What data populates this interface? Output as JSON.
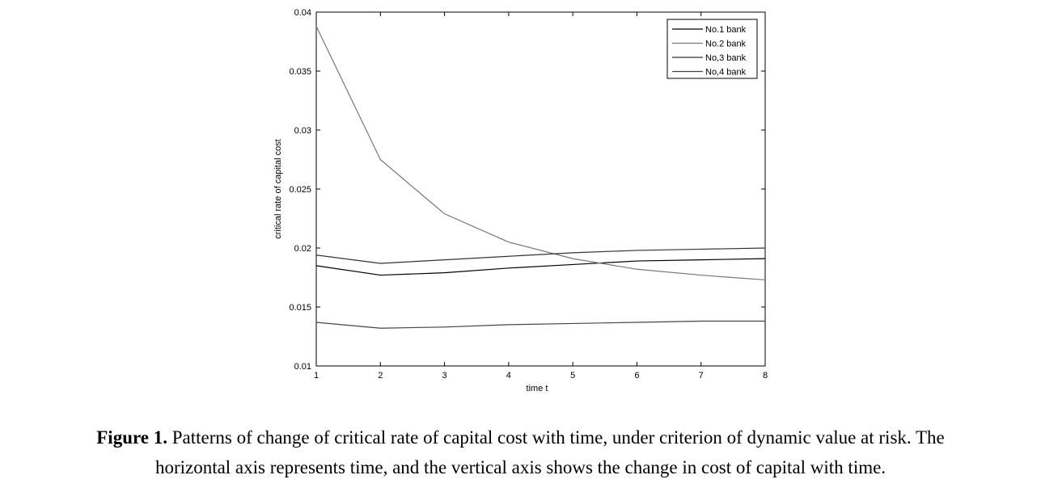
{
  "chart_data": {
    "type": "line",
    "xlabel": "time t",
    "ylabel": "critical rate of capital cost",
    "xlim": [
      1,
      8
    ],
    "ylim": [
      0.01,
      0.04
    ],
    "x_ticks": [
      1,
      2,
      3,
      4,
      5,
      6,
      7,
      8
    ],
    "y_ticks": [
      0.01,
      0.015,
      0.02,
      0.025,
      0.03,
      0.035,
      0.04
    ],
    "y_tick_labels": [
      "0.01",
      "0.015",
      "0.02",
      "0.025",
      "0.03",
      "0.035",
      "0.04"
    ],
    "x": [
      1,
      2,
      3,
      4,
      5,
      6,
      7,
      8
    ],
    "legend_position": "top-right",
    "grid": false,
    "series": [
      {
        "name": "No.1 bank",
        "color": "#000000",
        "values": [
          0.0185,
          0.0177,
          0.0179,
          0.0183,
          0.0186,
          0.0189,
          0.019,
          0.0191
        ]
      },
      {
        "name": "No.2 bank",
        "color": "#777777",
        "values": [
          0.0388,
          0.0275,
          0.0229,
          0.0205,
          0.0191,
          0.0182,
          0.0177,
          0.0173
        ]
      },
      {
        "name": "No,3 bank",
        "color": "#333333",
        "values": [
          0.0194,
          0.0187,
          0.019,
          0.0193,
          0.0196,
          0.0198,
          0.0199,
          0.02
        ]
      },
      {
        "name": "No,4 bank",
        "color": "#444444",
        "values": [
          0.0137,
          0.0132,
          0.0133,
          0.0135,
          0.0136,
          0.0137,
          0.0138,
          0.0138
        ]
      }
    ]
  },
  "caption": {
    "lead": "Figure 1.",
    "line1": " Patterns of change of critical rate of capital cost with time, under criterion of dynamic value at risk. The",
    "line2": "horizontal axis represents time, and the vertical axis shows the change in cost of capital with time."
  }
}
